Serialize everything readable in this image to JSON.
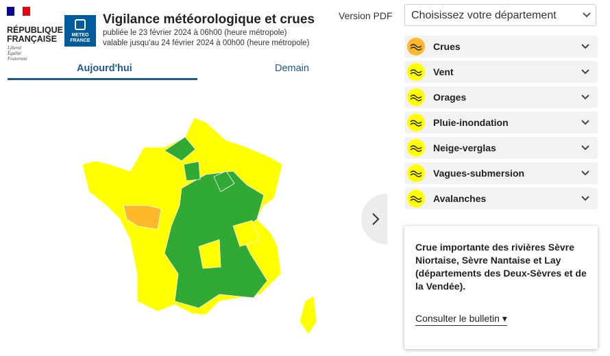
{
  "header": {
    "republique": [
      "RÉPUBLIQUE",
      "FRANÇAISE"
    ],
    "devise": [
      "Liberté",
      "Égalité",
      "Fraternité"
    ],
    "meteo_france": [
      "METEO",
      "FRANCE"
    ],
    "title": "Vigilance météorologique et crues",
    "published": "publiée le 23 février 2024 à 06h00 (heure métropole)",
    "valid": "valable jusqu'au 24 février 2024 à 00h00 (heure métropole)",
    "pdf_link": "Version PDF"
  },
  "tabs": [
    "Aujourd'hui",
    "Demain"
  ],
  "department_select": "Choisissez votre département",
  "phenomena": [
    "Crues",
    "Vent",
    "Orages",
    "Pluie-inondation",
    "Neige-verglas",
    "Vagues-submersion",
    "Avalanches"
  ],
  "alert": {
    "text": "Crue importante des rivières Sèvre Niortaise, Sèvre Nantaise et Lay (départements des Deux-Sèvres et de la Vendée).",
    "link": "Consulter le bulletin"
  }
}
